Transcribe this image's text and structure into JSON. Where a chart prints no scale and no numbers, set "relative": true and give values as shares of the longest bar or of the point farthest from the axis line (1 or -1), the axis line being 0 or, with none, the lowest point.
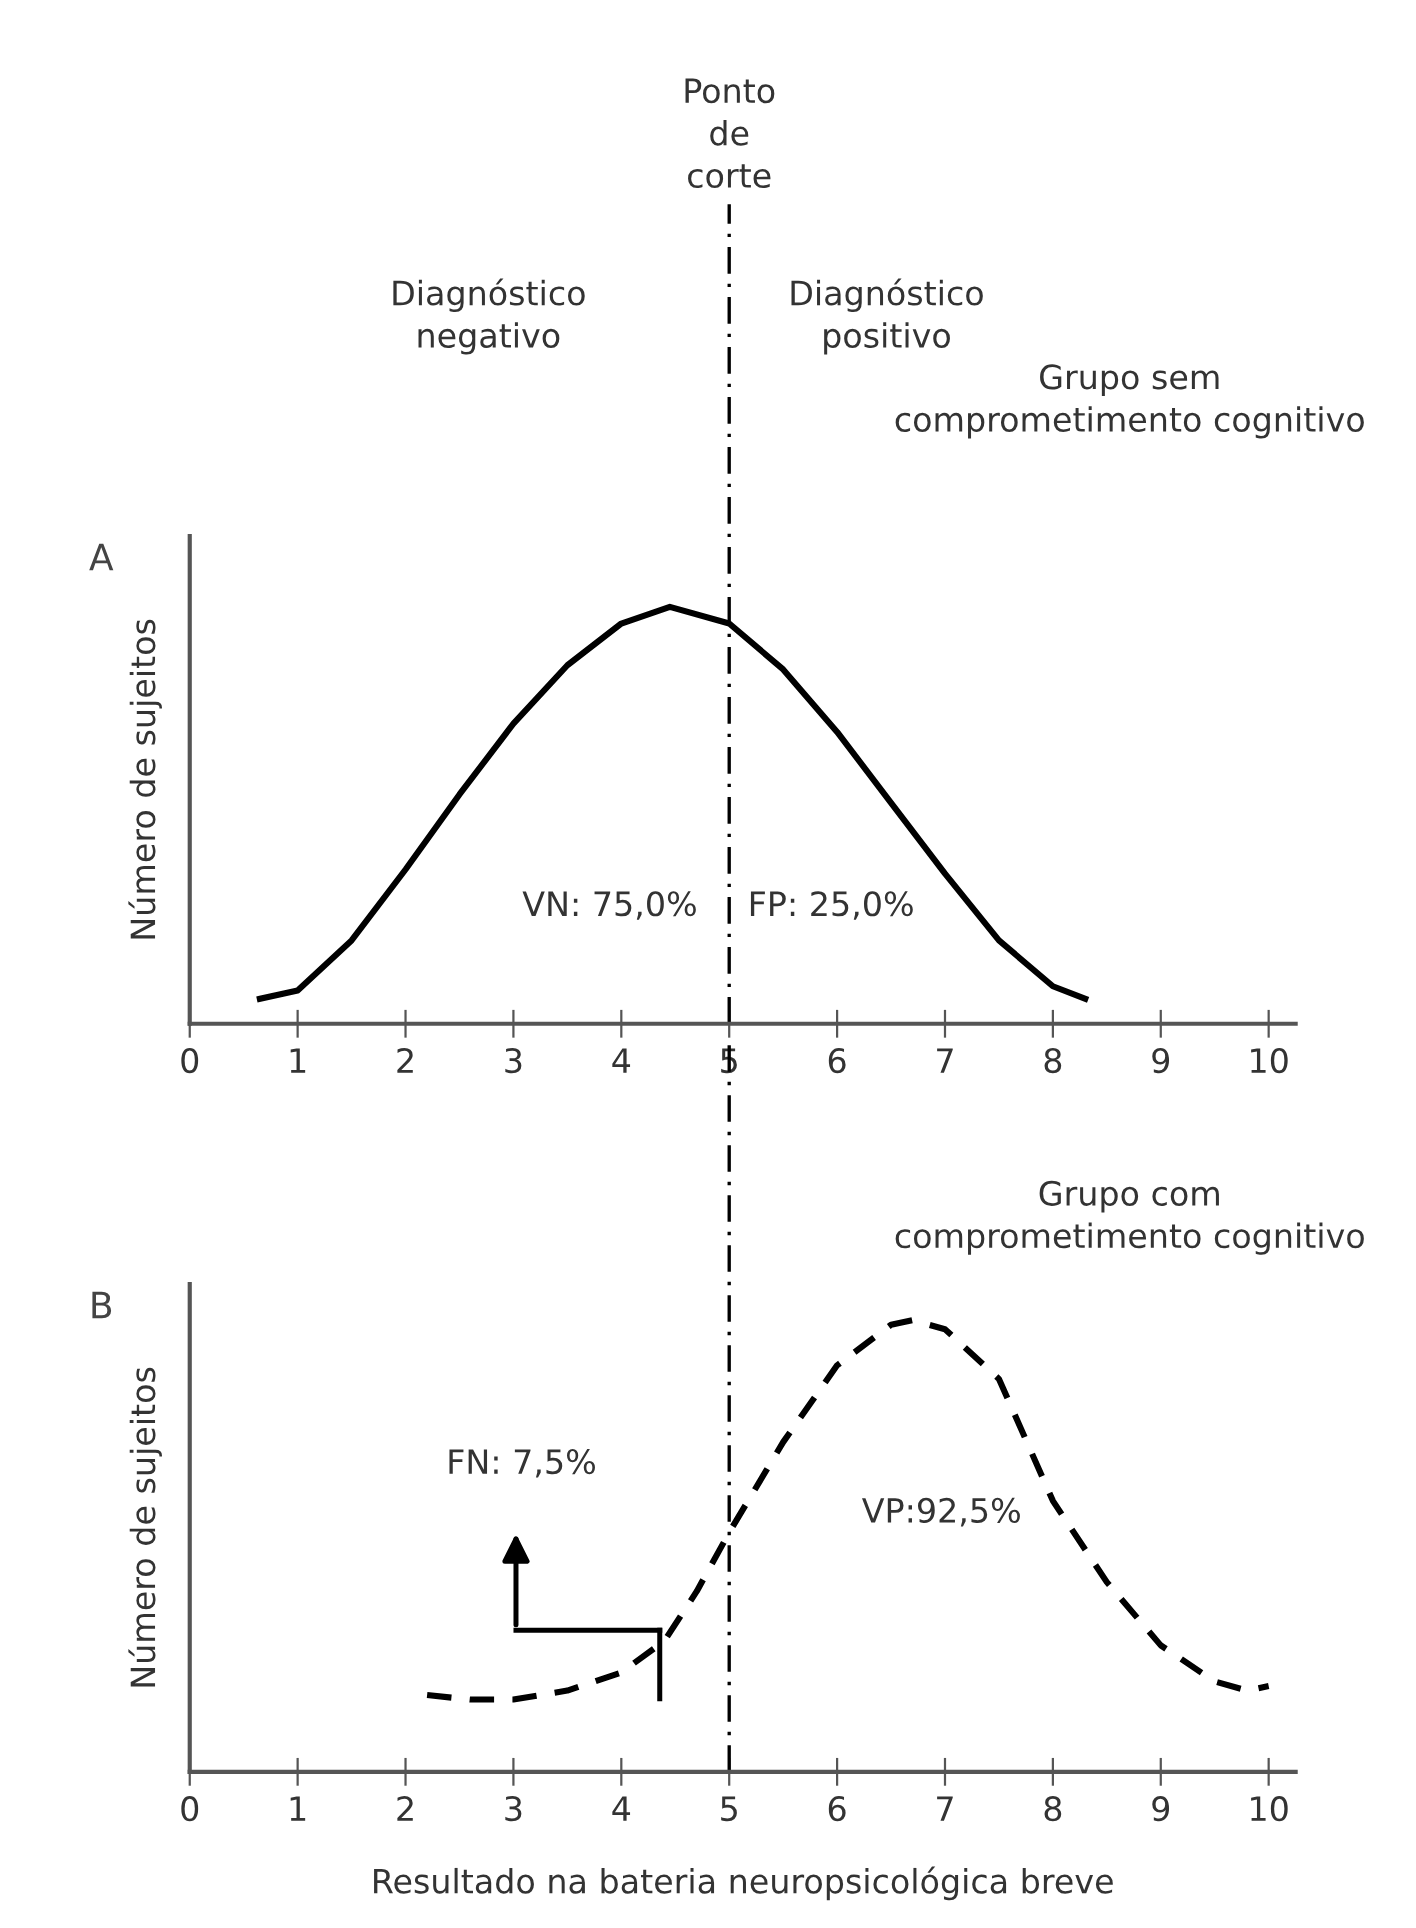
{
  "chart_data": [
    {
      "type": "line",
      "title": "A",
      "subtitle": "Grupo sem comprometimento cognitivo",
      "ylabel": "Número de sujeitos",
      "relative": true,
      "xlim": [
        0,
        10.25
      ],
      "xticks": [
        0,
        1,
        2,
        3,
        4,
        5,
        6,
        7,
        8,
        9,
        10
      ],
      "tick_labels": "x",
      "grid": false,
      "legend": false,
      "marker": "none",
      "series": [
        {
          "color": "#000000",
          "line_style": "solid",
          "x": [
            0.65,
            1.0,
            1.5,
            2.0,
            2.5,
            3.0,
            3.5,
            4.0,
            4.45,
            5.0,
            5.5,
            6.0,
            6.5,
            7.0,
            7.5,
            8.0,
            8.3
          ],
          "values": [
            0.06,
            0.08,
            0.2,
            0.37,
            0.55,
            0.72,
            0.86,
            0.96,
            1.0,
            0.96,
            0.85,
            0.7,
            0.53,
            0.36,
            0.2,
            0.09,
            0.06
          ]
        }
      ],
      "ref_lines": [
        {
          "axis": "x",
          "value": 5,
          "label": "Ponto de corte",
          "color": "#000000",
          "line_style": "dashdot"
        }
      ],
      "annotations": [
        "Diagnóstico negativo",
        "Diagnóstico positivo",
        "VN: 75,0%",
        "FP: 25,0%"
      ]
    },
    {
      "type": "line",
      "title": "B",
      "subtitle": "Grupo com comprometimento cognitivo",
      "xlabel": "Resultado na bateria neuropsicológica breve",
      "ylabel": "Número de sujeitos",
      "relative": true,
      "xlim": [
        0,
        10.25
      ],
      "xticks": [
        0,
        1,
        2,
        3,
        4,
        5,
        6,
        7,
        8,
        9,
        10
      ],
      "tick_labels": "x",
      "grid": false,
      "legend": false,
      "marker": "none",
      "series": [
        {
          "color": "#000000",
          "line_style": "dashed",
          "x": [
            2.2,
            2.6,
            3.0,
            3.5,
            4.0,
            4.4,
            4.7,
            5.0,
            5.5,
            6.0,
            6.5,
            6.7,
            7.0,
            7.5,
            8.0,
            8.5,
            9.0,
            9.5,
            9.8,
            10.0
          ],
          "values": [
            0.17,
            0.16,
            0.16,
            0.18,
            0.22,
            0.29,
            0.4,
            0.53,
            0.73,
            0.9,
            0.99,
            1.0,
            0.98,
            0.87,
            0.6,
            0.42,
            0.28,
            0.2,
            0.18,
            0.19
          ]
        }
      ],
      "ref_lines": [
        {
          "axis": "x",
          "value": 5,
          "color": "#000000",
          "line_style": "dashdot"
        }
      ],
      "annotations": [
        "FN: 7,5%",
        "VP:92,5%"
      ]
    }
  ]
}
